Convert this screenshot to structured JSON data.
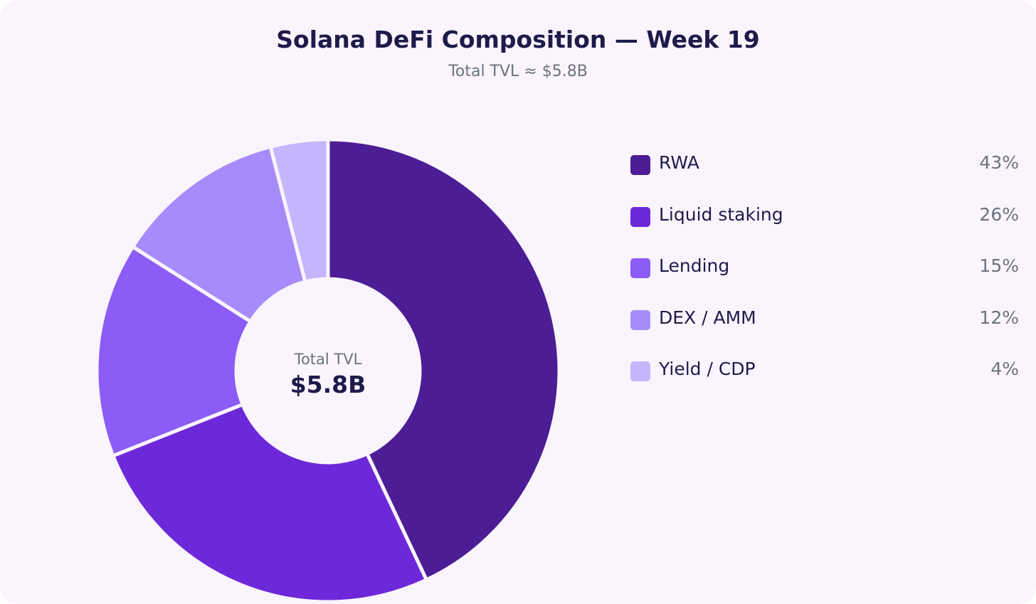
{
  "chart_data": {
    "type": "pie",
    "title": "Solana DeFi Composition — Week 19",
    "subtitle": "Total TVL ≈ $5.8B",
    "center_label": "Total TVL",
    "center_value": "$5.8B",
    "categories": [
      "RWA",
      "Liquid staking",
      "Lending",
      "DEX / AMM",
      "Yield / CDP"
    ],
    "values": [
      43,
      26,
      15,
      12,
      4
    ],
    "value_labels": [
      "43%",
      "26%",
      "15%",
      "12%",
      "4%"
    ],
    "colors": [
      "#4c1d95",
      "#6d28d9",
      "#8b5cf6",
      "#a78bfa",
      "#c4b5fd"
    ],
    "legend_position": "right",
    "donut": true
  }
}
